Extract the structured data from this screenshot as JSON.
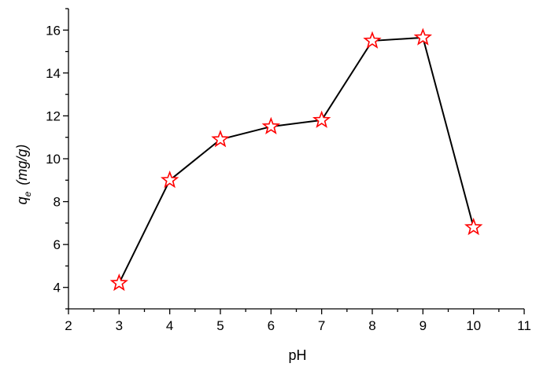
{
  "chart_data": {
    "type": "line",
    "xlabel": "pH",
    "ylabel_main": "q",
    "ylabel_sub": "e",
    "ylabel_unit": "(mg/g)",
    "xlim": [
      2,
      11
    ],
    "ylim": [
      3,
      17
    ],
    "xticks": [
      2,
      3,
      4,
      5,
      6,
      7,
      8,
      9,
      10,
      11
    ],
    "yticks": [
      4,
      6,
      8,
      10,
      12,
      14,
      16
    ],
    "grid": false,
    "legend": "none",
    "marker": "star",
    "marker_color": "#ff0000",
    "line_color": "#000000",
    "series": [
      {
        "x": [
          3,
          4,
          5,
          6,
          7,
          8,
          9,
          10
        ],
        "y": [
          4.2,
          9.0,
          10.9,
          11.5,
          11.8,
          15.5,
          15.65,
          6.8
        ]
      }
    ]
  }
}
